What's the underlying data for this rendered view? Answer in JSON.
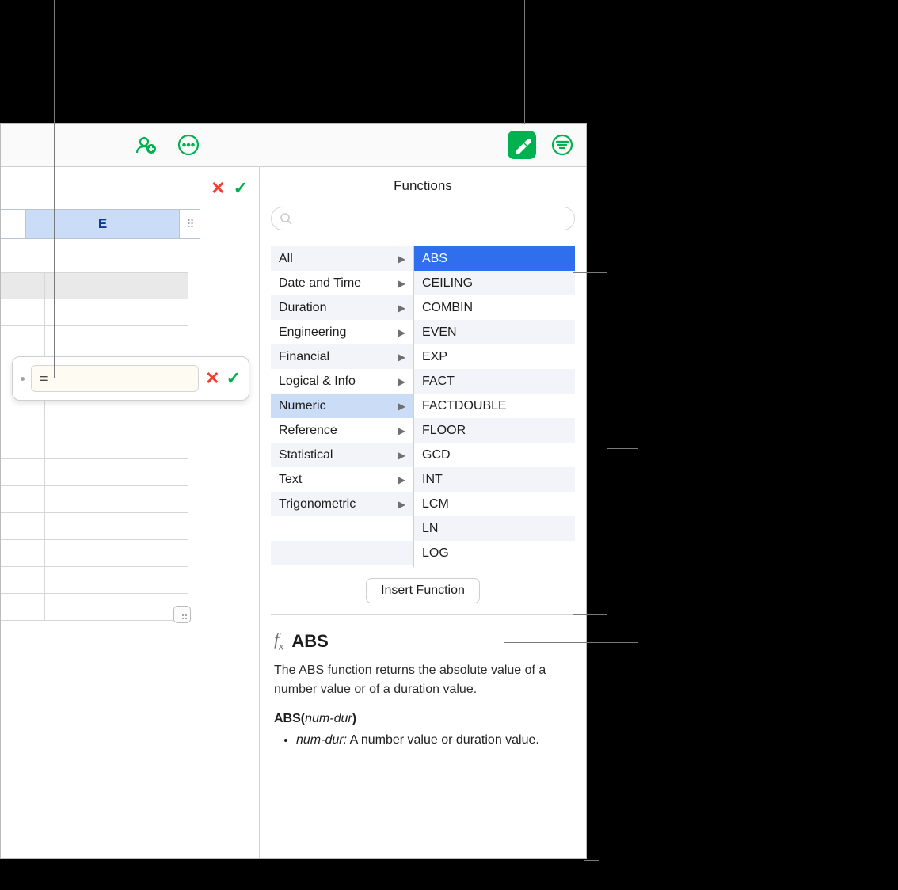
{
  "toolbar": {
    "add_person_title": "Add people",
    "more_title": "More",
    "format_title": "Format",
    "filter_title": "Filter & Sort"
  },
  "panel": {
    "title": "Functions",
    "search_placeholder": ""
  },
  "categories": [
    {
      "label": "All"
    },
    {
      "label": "Date and Time"
    },
    {
      "label": "Duration"
    },
    {
      "label": "Engineering"
    },
    {
      "label": "Financial"
    },
    {
      "label": "Logical & Info"
    },
    {
      "label": "Numeric",
      "selected": true
    },
    {
      "label": "Reference"
    },
    {
      "label": "Statistical"
    },
    {
      "label": "Text"
    },
    {
      "label": "Trigonometric"
    }
  ],
  "functions": [
    {
      "label": "ABS",
      "selected": true
    },
    {
      "label": "CEILING"
    },
    {
      "label": "COMBIN"
    },
    {
      "label": "EVEN"
    },
    {
      "label": "EXP"
    },
    {
      "label": "FACT"
    },
    {
      "label": "FACTDOUBLE"
    },
    {
      "label": "FLOOR"
    },
    {
      "label": "GCD"
    },
    {
      "label": "INT"
    },
    {
      "label": "LCM"
    },
    {
      "label": "LN"
    },
    {
      "label": "LOG"
    }
  ],
  "insert_label": "Insert Function",
  "detail": {
    "name": "ABS",
    "description": "The ABS function returns the absolute value of a number value or of a duration value.",
    "signature_fn": "ABS",
    "signature_arg": "num-dur",
    "param_name": "num-dur:",
    "param_desc": "A number value or duration value."
  },
  "sheet": {
    "column_label": "E",
    "formula_text": "="
  },
  "colors": {
    "accent": "#00b14f",
    "selection_blue": "#2f6fed",
    "header_blue": "#cbdcf7",
    "stripe": "#f2f4fa"
  }
}
